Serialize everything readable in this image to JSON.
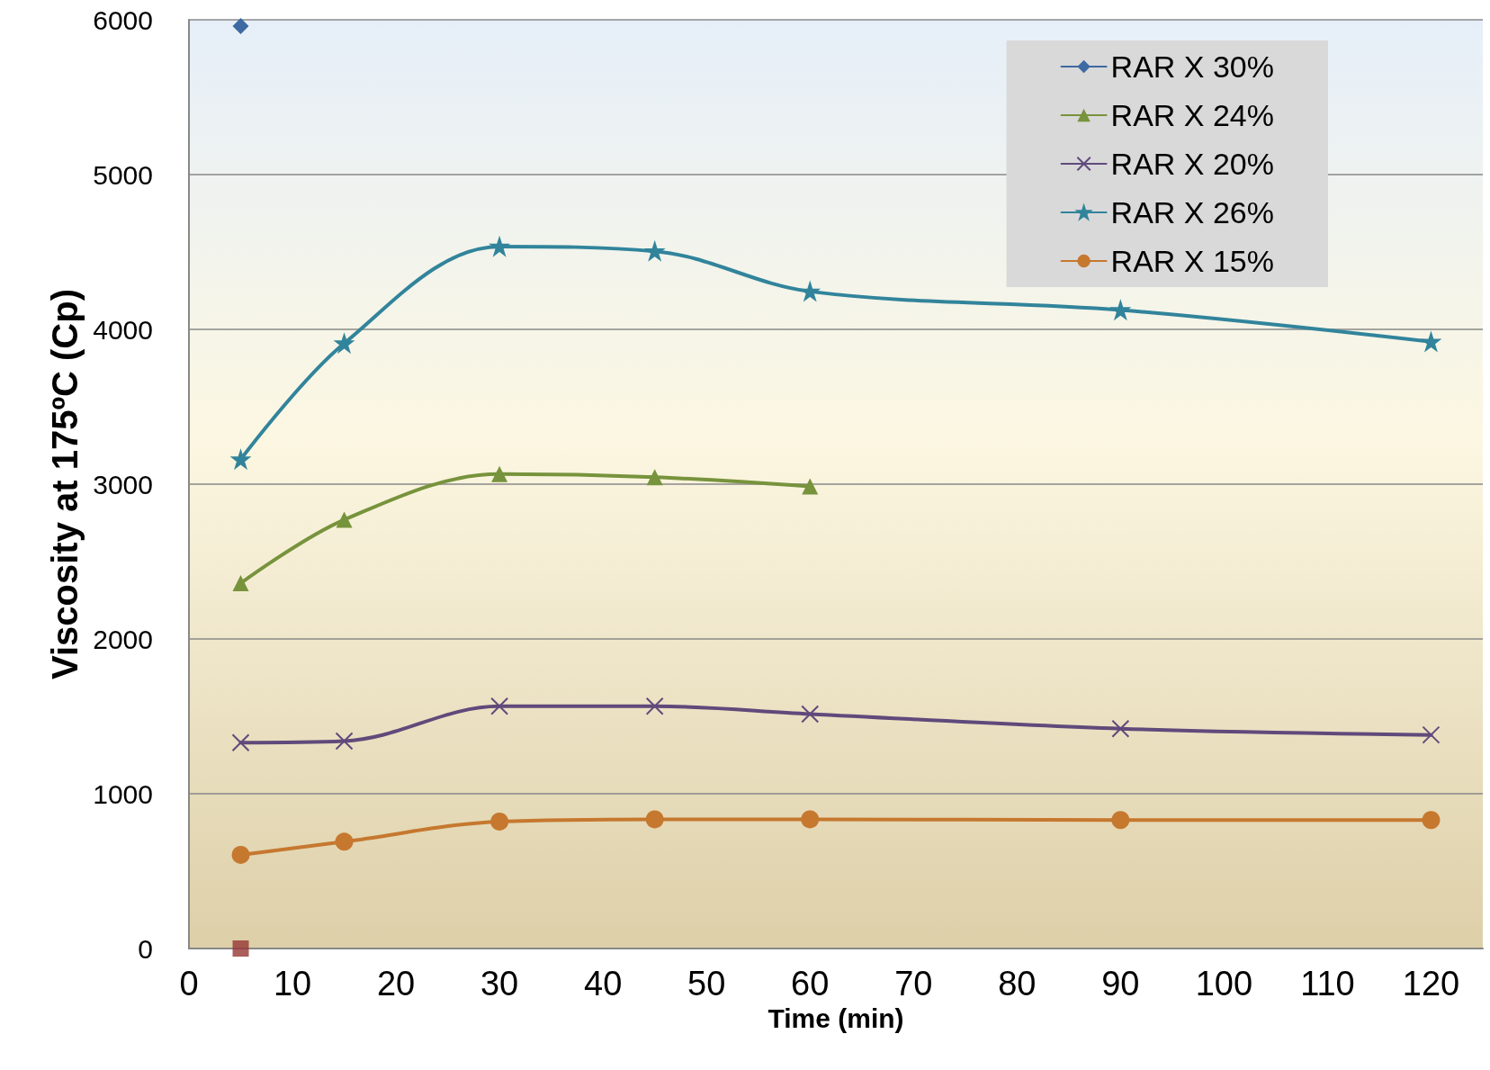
{
  "chart_data": {
    "type": "line",
    "xlabel": "Time (min)",
    "ylabel": "Viscosity at 175ºC (Cp)",
    "xlim": [
      0,
      125
    ],
    "xticks": [
      0,
      10,
      20,
      30,
      40,
      50,
      60,
      70,
      80,
      90,
      100,
      110,
      120
    ],
    "ylim": [
      0,
      6000
    ],
    "yticks": [
      0,
      1000,
      2000,
      3000,
      4000,
      5000,
      6000
    ],
    "grid": "y",
    "legend": "top right",
    "line_style": "solid",
    "series": [
      {
        "name": "RAR X 30%",
        "color": "#3d6aa2",
        "marker": "diamond",
        "x": [
          5
        ],
        "values": [
          5960
        ]
      },
      {
        "name": "RAR X 24%",
        "color": "#77933c",
        "marker": "triangle",
        "x": [
          5,
          15,
          30,
          45,
          60
        ],
        "values": [
          2360,
          2770,
          3065,
          3045,
          2985
        ]
      },
      {
        "name": "RAR X 20%",
        "color": "#604a7b",
        "marker": "cross",
        "x": [
          5,
          15,
          30,
          45,
          60,
          90,
          120
        ],
        "values": [
          1330,
          1340,
          1565,
          1565,
          1515,
          1420,
          1380
        ]
      },
      {
        "name": "RAR X 26%",
        "color": "#31849b",
        "marker": "star",
        "x": [
          5,
          15,
          30,
          45,
          60,
          90,
          120
        ],
        "values": [
          3160,
          3910,
          4535,
          4505,
          4245,
          4125,
          3920
        ]
      },
      {
        "name": "RAR X 15%",
        "color": "#c6782f",
        "marker": "circle",
        "x": [
          5,
          15,
          30,
          45,
          60,
          90,
          120
        ],
        "values": [
          605,
          690,
          820,
          835,
          835,
          830,
          830
        ]
      },
      {
        "type": "scatter",
        "color": "#953735",
        "marker": "square",
        "x": [
          5
        ],
        "values": [
          0
        ]
      }
    ]
  }
}
